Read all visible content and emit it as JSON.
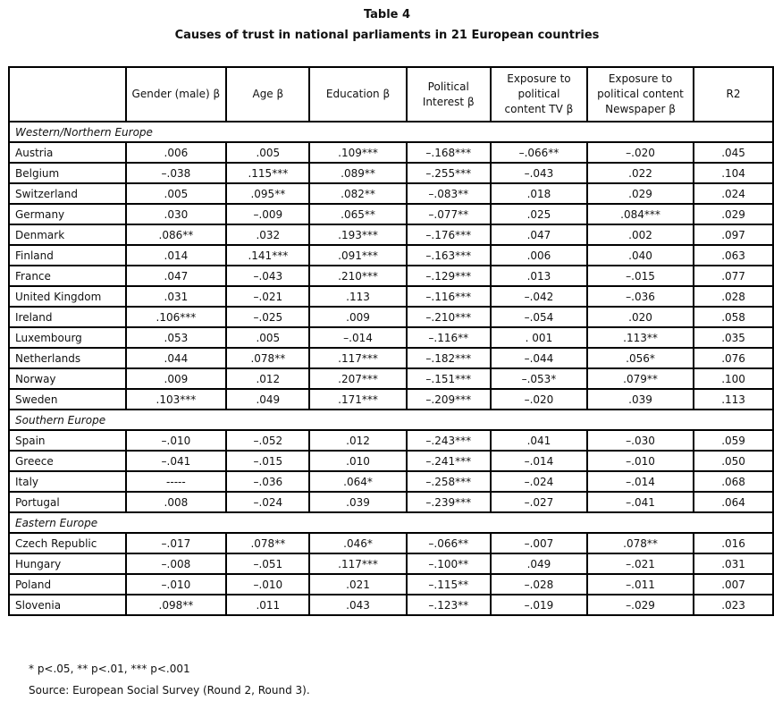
{
  "title": "Table 4",
  "subtitle": "Causes of trust in national parliaments in 21 European countries",
  "columns": [
    "",
    "Gender (male) β",
    "Age β",
    "Education β",
    "Political Interest β",
    "Exposure to political content TV β",
    "Exposure to political content Newspaper β",
    "R2"
  ],
  "groups": [
    {
      "label": "Western/Northern Europe",
      "rows": [
        [
          "Austria",
          ".006",
          ".005",
          ".109***",
          "–.168***",
          "–.066**",
          "–.020",
          ".045"
        ],
        [
          "Belgium",
          "–.038",
          ".115***",
          ".089**",
          "–.255***",
          "–.043",
          ".022",
          ".104"
        ],
        [
          "Switzerland",
          ".005",
          ".095**",
          ".082**",
          "–.083**",
          ".018",
          ".029",
          ".024"
        ],
        [
          "Germany",
          ".030",
          "–.009",
          ".065**",
          "–.077**",
          ".025",
          ".084***",
          ".029"
        ],
        [
          "Denmark",
          ".086**",
          ".032",
          ".193***",
          "–.176***",
          ".047",
          ".002",
          ".097"
        ],
        [
          "Finland",
          ".014",
          ".141***",
          ".091***",
          "–.163***",
          ".006",
          ".040",
          ".063"
        ],
        [
          "France",
          ".047",
          "–.043",
          ".210***",
          "–.129***",
          ".013",
          "–.015",
          ".077"
        ],
        [
          "United Kingdom",
          ".031",
          "–.021",
          ".113",
          "–.116***",
          "–.042",
          "–.036",
          ".028"
        ],
        [
          "Ireland",
          ".106***",
          "–.025",
          ".009",
          "–.210***",
          "–.054",
          ".020",
          ".058"
        ],
        [
          "Luxembourg",
          ".053",
          ".005",
          "–.014",
          "–.116**",
          ". 001",
          ".113**",
          ".035"
        ],
        [
          "Netherlands",
          ".044",
          ".078**",
          ".117***",
          "–.182***",
          "–.044",
          ".056*",
          ".076"
        ],
        [
          "Norway",
          ".009",
          ".012",
          ".207***",
          "–.151***",
          "–.053*",
          ".079**",
          ".100"
        ],
        [
          "Sweden",
          ".103***",
          ".049",
          ".171***",
          "–.209***",
          "–.020",
          ".039",
          ".113"
        ]
      ]
    },
    {
      "label": "Southern Europe",
      "rows": [
        [
          "Spain",
          "–.010",
          "–.052",
          ".012",
          "–.243***",
          ".041",
          "–.030",
          ".059"
        ],
        [
          "Greece",
          "–.041",
          "–.015",
          ".010",
          "–.241***",
          "–.014",
          "–.010",
          ".050"
        ],
        [
          "Italy",
          "-----",
          "–.036",
          ".064*",
          "–.258***",
          "–.024",
          "–.014",
          ".068"
        ],
        [
          "Portugal",
          ".008",
          "–.024",
          ".039",
          "–.239***",
          "–.027",
          "–.041",
          ".064"
        ]
      ]
    },
    {
      "label": "Eastern Europe",
      "rows": [
        [
          "Czech Republic",
          "–.017",
          ".078**",
          ".046*",
          "–.066**",
          "–.007",
          ".078**",
          ".016"
        ],
        [
          "Hungary",
          "–.008",
          "–.051",
          ".117***",
          "–.100**",
          ".049",
          "–.021",
          ".031"
        ],
        [
          "Poland",
          "–.010",
          "–.010",
          ".021",
          "–.115**",
          "–.028",
          "–.011",
          ".007"
        ],
        [
          "Slovenia",
          ".098**",
          ".011",
          ".043",
          "–.123**",
          "–.019",
          "–.029",
          ".023"
        ]
      ]
    }
  ],
  "notes": [
    "* p<.05, ** p<.01, *** p<.001",
    "Source: European Social Survey (Round 2, Round 3)."
  ]
}
